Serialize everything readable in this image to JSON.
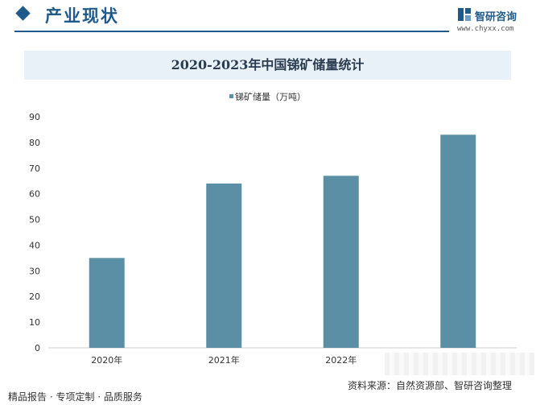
{
  "header": {
    "section_title": "产业现状",
    "brand_name": "智研咨询",
    "brand_url": "www.chyxx.com"
  },
  "chart_title": "2020-2023年中国锑矿储量统计",
  "chart_data": {
    "type": "bar",
    "title": "2020-2023年中国锑矿储量统计",
    "categories": [
      "2020年",
      "2021年",
      "2022年",
      ""
    ],
    "series": [
      {
        "name": "锑矿储量（万吨）",
        "values": [
          35,
          64,
          67,
          83
        ]
      }
    ],
    "ylim": [
      0,
      90
    ],
    "yticks": [
      0,
      10,
      20,
      30,
      40,
      50,
      60,
      70,
      80,
      90
    ],
    "ytick_labels": [
      "0",
      "10",
      "20",
      "30",
      "40",
      "50",
      "60",
      "70",
      "80",
      "90"
    ],
    "legend_position": "top-center",
    "grid": false,
    "colors": {
      "bar": "#5b8fa6",
      "axis": "#cccccc",
      "text": "#333333"
    }
  },
  "footer": {
    "left": "精品报告 · 专项定制 · 品质服务",
    "source": "资料来源：自然资源部、智研咨询整理"
  }
}
